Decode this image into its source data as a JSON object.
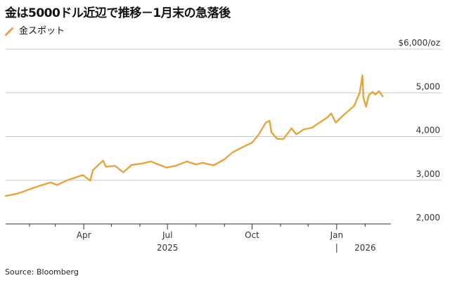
{
  "title": "金は5000ドル近辺で推移－1月末の急落後",
  "legend": {
    "label": "金スポット",
    "color": "#E8A33D"
  },
  "source": "Source: Bloomberg",
  "colors": {
    "line": "#E8A33D",
    "grid": "#c8c8c8",
    "axis": "#333333",
    "text": "#333333"
  },
  "chart_data": {
    "type": "line",
    "title": "金は5000ドル近辺で推移－1月末の急落後",
    "ylabel": "",
    "xlabel": "",
    "ylim": [
      2000,
      6000
    ],
    "yticks": [
      2000,
      3000,
      4000,
      5000,
      6000
    ],
    "ytick_labels": [
      "2,000",
      "3,000",
      "4,000",
      "5,000",
      "$6,000/oz"
    ],
    "xlim": [
      "2025-01-06",
      "2026-03-01"
    ],
    "xticks": [
      {
        "date": "2025-04-01",
        "label": "Apr"
      },
      {
        "date": "2025-07-01",
        "label": "Jul"
      },
      {
        "date": "2025-10-01",
        "label": "Oct"
      },
      {
        "date": "2026-01-01",
        "label": "Jan"
      }
    ],
    "minor_ticks": [
      "2025-02-01",
      "2025-03-01",
      "2025-05-01",
      "2025-06-01",
      "2025-08-01",
      "2025-09-01",
      "2025-11-01",
      "2025-12-01",
      "2026-02-01"
    ],
    "year_labels": [
      {
        "date": "2025-07-01",
        "label": "2025"
      },
      {
        "date": "2026-02-01",
        "label": "2026"
      }
    ],
    "year_divider": "2026-01-01",
    "grid": true,
    "legend_position": "top-left",
    "series": [
      {
        "name": "金スポット",
        "color": "#E8A33D",
        "points": [
          [
            "2025-01-06",
            2640
          ],
          [
            "2025-01-20",
            2700
          ],
          [
            "2025-02-10",
            2860
          ],
          [
            "2025-02-24",
            2950
          ],
          [
            "2025-03-03",
            2890
          ],
          [
            "2025-03-14",
            3000
          ],
          [
            "2025-03-31",
            3120
          ],
          [
            "2025-04-08",
            2990
          ],
          [
            "2025-04-11",
            3230
          ],
          [
            "2025-04-22",
            3450
          ],
          [
            "2025-04-25",
            3310
          ],
          [
            "2025-05-05",
            3330
          ],
          [
            "2025-05-14",
            3180
          ],
          [
            "2025-05-23",
            3350
          ],
          [
            "2025-06-03",
            3380
          ],
          [
            "2025-06-13",
            3430
          ],
          [
            "2025-06-20",
            3370
          ],
          [
            "2025-06-30",
            3290
          ],
          [
            "2025-07-10",
            3330
          ],
          [
            "2025-07-22",
            3430
          ],
          [
            "2025-08-01",
            3360
          ],
          [
            "2025-08-08",
            3400
          ],
          [
            "2025-08-20",
            3340
          ],
          [
            "2025-09-01",
            3480
          ],
          [
            "2025-09-10",
            3640
          ],
          [
            "2025-09-23",
            3780
          ],
          [
            "2025-10-01",
            3860
          ],
          [
            "2025-10-08",
            4040
          ],
          [
            "2025-10-16",
            4320
          ],
          [
            "2025-10-20",
            4360
          ],
          [
            "2025-10-22",
            4100
          ],
          [
            "2025-10-28",
            3950
          ],
          [
            "2025-11-04",
            3940
          ],
          [
            "2025-11-13",
            4190
          ],
          [
            "2025-11-18",
            4050
          ],
          [
            "2025-11-26",
            4160
          ],
          [
            "2025-12-05",
            4200
          ],
          [
            "2025-12-12",
            4300
          ],
          [
            "2025-12-22",
            4440
          ],
          [
            "2025-12-26",
            4530
          ],
          [
            "2025-12-31",
            4320
          ],
          [
            "2026-01-09",
            4500
          ],
          [
            "2026-01-20",
            4700
          ],
          [
            "2026-01-26",
            5000
          ],
          [
            "2026-01-29",
            5400
          ],
          [
            "2026-01-30",
            4900
          ],
          [
            "2026-02-02",
            4680
          ],
          [
            "2026-02-05",
            4950
          ],
          [
            "2026-02-09",
            5020
          ],
          [
            "2026-02-12",
            4960
          ],
          [
            "2026-02-16",
            5040
          ],
          [
            "2026-02-20",
            4920
          ]
        ]
      }
    ]
  }
}
